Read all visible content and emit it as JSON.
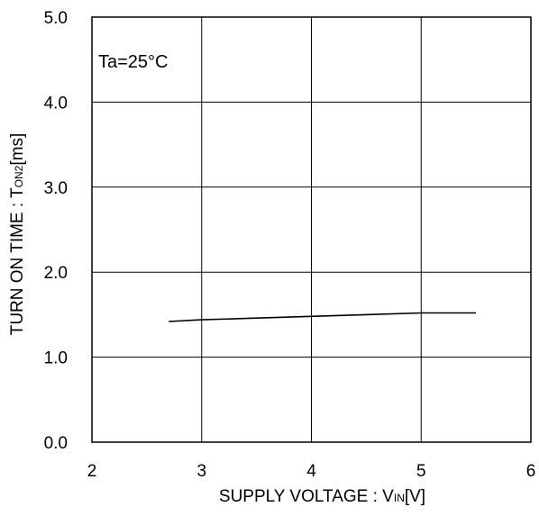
{
  "chart_data": {
    "type": "line",
    "title": "",
    "annotation": "Ta=25°C",
    "xlabel": {
      "main": "SUPPLY VOLTAGE : V",
      "sub": "IN",
      "unit": "[V]"
    },
    "ylabel": {
      "main": "TURN ON TIME : T",
      "sub": "ON2",
      "unit": "[ms]"
    },
    "xlim": [
      2,
      6
    ],
    "ylim": [
      0,
      5
    ],
    "x_ticks": [
      2,
      3,
      4,
      5,
      6
    ],
    "x_tick_labels": [
      "2",
      "3",
      "4",
      "5",
      "6"
    ],
    "y_ticks": [
      0,
      1,
      2,
      3,
      4,
      5
    ],
    "y_tick_labels": [
      "0.0",
      "1.0",
      "2.0",
      "3.0",
      "4.0",
      "5.0"
    ],
    "grid": true,
    "series": [
      {
        "x": [
          2.7,
          3.0,
          3.5,
          4.0,
          4.5,
          5.0,
          5.5
        ],
        "y": [
          1.42,
          1.44,
          1.46,
          1.48,
          1.5,
          1.52,
          1.52
        ],
        "color": "#000000"
      }
    ]
  }
}
